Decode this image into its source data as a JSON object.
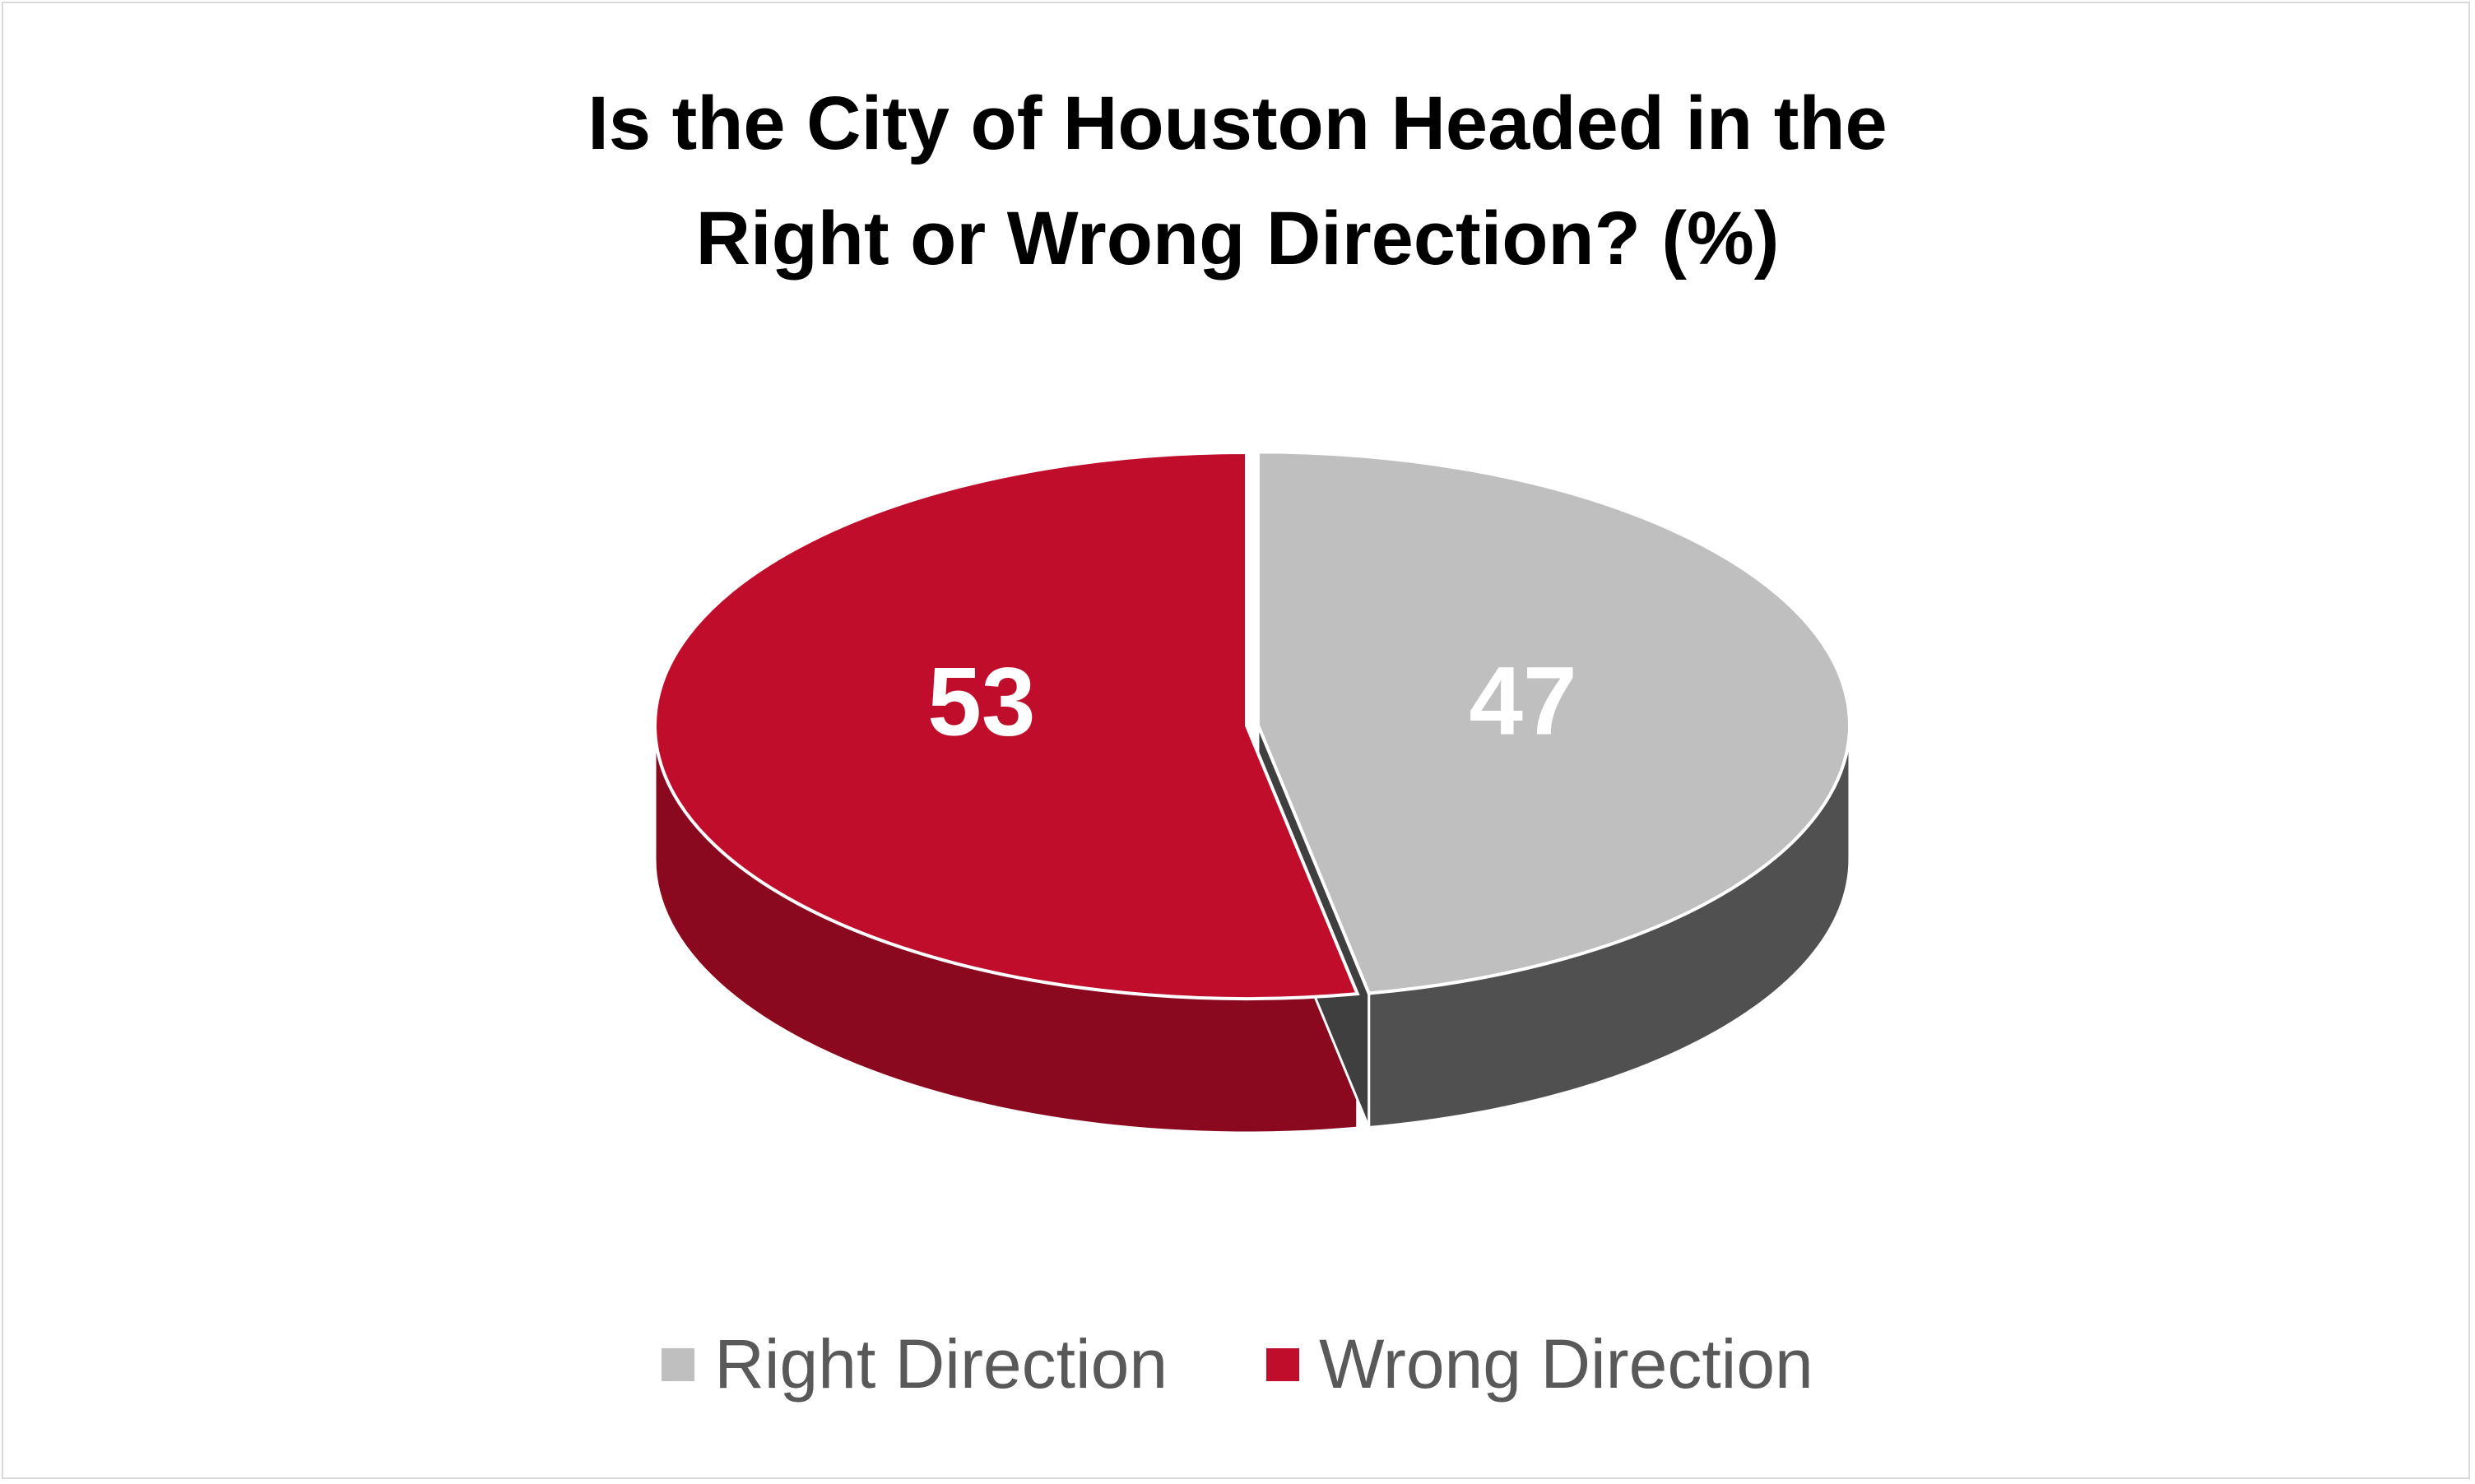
{
  "chart_data": {
    "type": "pie",
    "title": "Is the City of Houston Headed in the Right or Wrong Direction? (%)",
    "categories": [
      "Right Direction",
      "Wrong Direction"
    ],
    "values": [
      47,
      53
    ],
    "colors": [
      "#bfbfbf",
      "#c00d2b"
    ],
    "legend": "bottom"
  }
}
